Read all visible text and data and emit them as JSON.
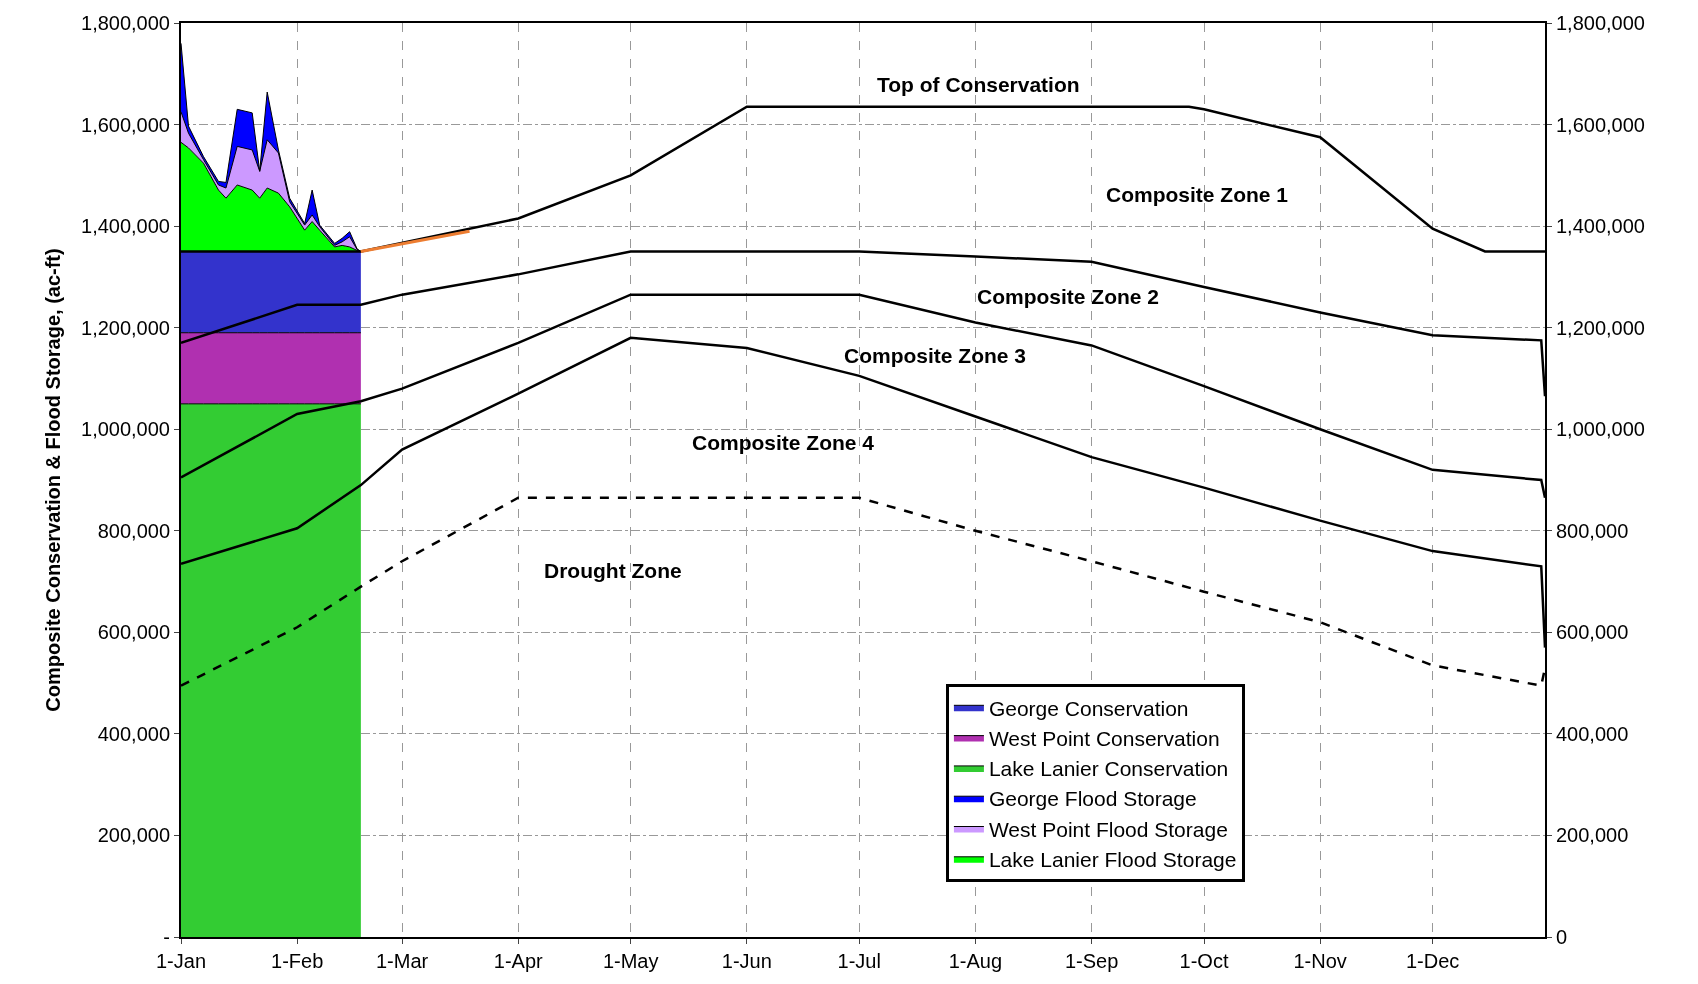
{
  "chart_data": {
    "type": "area",
    "stacked": true,
    "ylabel": "Composite Conservation & Flood Storage, (ac-ft)",
    "xlim": [
      "--01-01",
      "--12-31"
    ],
    "xticks": [
      {
        "value": "--01-01",
        "label": "1-Jan"
      },
      {
        "value": "--02-01",
        "label": "1-Feb"
      },
      {
        "value": "--03-01",
        "label": "1-Mar"
      },
      {
        "value": "--04-01",
        "label": "1-Apr"
      },
      {
        "value": "--05-01",
        "label": "1-May"
      },
      {
        "value": "--06-01",
        "label": "1-Jun"
      },
      {
        "value": "--07-01",
        "label": "1-Jul"
      },
      {
        "value": "--08-01",
        "label": "1-Aug"
      },
      {
        "value": "--09-01",
        "label": "1-Sep"
      },
      {
        "value": "--10-01",
        "label": "1-Oct"
      },
      {
        "value": "--11-01",
        "label": "1-Nov"
      },
      {
        "value": "--12-01",
        "label": "1-Dec"
      }
    ],
    "ylim": [
      0,
      1800000
    ],
    "yticks": [
      {
        "value": 0,
        "label": "-"
      },
      {
        "value": 200000,
        "label": "200,000"
      },
      {
        "value": 400000,
        "label": "400,000"
      },
      {
        "value": 600000,
        "label": "600,000"
      },
      {
        "value": 800000,
        "label": "800,000"
      },
      {
        "value": 1000000,
        "label": "1,000,000"
      },
      {
        "value": 1200000,
        "label": "1,200,000"
      },
      {
        "value": 1400000,
        "label": "1,400,000"
      },
      {
        "value": 1600000,
        "label": "1,600,000"
      },
      {
        "value": 1800000,
        "label": "1,800,000"
      }
    ],
    "y2lim": [
      0,
      1800000
    ],
    "y2ticks": [
      0,
      {
        "value": 200000,
        "label": "200,000"
      },
      {
        "value": 400000,
        "label": "400,000"
      },
      {
        "value": 600000,
        "label": "600,000"
      },
      {
        "value": 800000,
        "label": "800,000"
      },
      {
        "value": 1000000,
        "label": "1,000,000"
      },
      {
        "value": 1200000,
        "label": "1,200,000"
      },
      {
        "value": 1400000,
        "label": "1,400,000"
      },
      {
        "value": 1600000,
        "label": "1,600,000"
      },
      {
        "value": 1800000,
        "label": "1,800,000"
      }
    ],
    "grid": true,
    "legend": "bottom right",
    "x": [
      "--01-01",
      "--01-03",
      "--01-07",
      "--01-11",
      "--01-13",
      "--01-16",
      "--01-20",
      "--01-22",
      "--01-24",
      "--01-27",
      "--01-30",
      "--02-03",
      "--02-05",
      "--02-07",
      "--02-11",
      "--02-13",
      "--02-15",
      "--02-17",
      "--02-18"
    ],
    "series": [
      {
        "name": "Lake Lanier Conservation",
        "color": "#33cc33",
        "values": [
          1050000,
          1050000,
          1050000,
          1050000,
          1050000,
          1050000,
          1050000,
          1050000,
          1050000,
          1050000,
          1050000,
          1050000,
          1050000,
          1050000,
          1050000,
          1050000,
          1050000,
          1050000,
          1050000
        ]
      },
      {
        "name": "West Point Conservation",
        "color": "#b030b0",
        "values": [
          140000,
          140000,
          140000,
          140000,
          140000,
          140000,
          140000,
          140000,
          140000,
          140000,
          140000,
          140000,
          140000,
          140000,
          140000,
          140000,
          140000,
          140000,
          140000
        ]
      },
      {
        "name": "George Conservation",
        "color": "#3333cc",
        "values": [
          160000,
          160000,
          160000,
          160000,
          160000,
          160000,
          160000,
          160000,
          160000,
          160000,
          160000,
          160000,
          160000,
          160000,
          160000,
          160000,
          160000,
          160000,
          160000
        ]
      },
      {
        "name": "Lake Lanier Flood Storage",
        "color": "#00ff00",
        "values": [
          215000,
          204000,
          174000,
          121000,
          105000,
          131000,
          121000,
          105000,
          125000,
          115000,
          88000,
          42000,
          59000,
          42000,
          9000,
          12000,
          9000,
          2000,
          0
        ]
      },
      {
        "name": "West Point Flood Storage",
        "color": "#cc99ff",
        "values": [
          60000,
          29000,
          7000,
          10000,
          20000,
          76000,
          79000,
          53000,
          95000,
          79000,
          10000,
          10000,
          13000,
          7000,
          3000,
          7000,
          20000,
          2000,
          0
        ]
      },
      {
        "name": "George Flood Storage",
        "color": "#0000ff",
        "values": [
          135000,
          14000,
          6000,
          7000,
          11000,
          73000,
          73000,
          0,
          94000,
          6000,
          7000,
          3000,
          49000,
          3000,
          4000,
          7000,
          10000,
          1000,
          0
        ]
      },
      {
        "type": "line",
        "color": "#000000",
        "x": [
          "--01-01",
          "--02-18",
          "--04-01",
          "--05-01",
          "--06-01",
          "--07-01",
          "--09-01",
          "--09-27",
          "--10-01",
          "--11-01",
          "--12-01",
          "--12-15",
          "--12-31"
        ],
        "values": [
          1350000,
          1350000,
          1415000,
          1500000,
          1635000,
          1635000,
          1635000,
          1635000,
          1630000,
          1575000,
          1395000,
          1350000,
          1350000
        ]
      },
      {
        "type": "line",
        "color": "#000000",
        "x": [
          "--01-01",
          "--02-01",
          "--02-18",
          "--03-01",
          "--04-01",
          "--05-01",
          "--07-01",
          "--08-01",
          "--09-01",
          "--10-01",
          "--11-01",
          "--12-01",
          "--12-30",
          "--12-31"
        ],
        "values": [
          1170000,
          1245000,
          1245000,
          1265000,
          1305000,
          1350000,
          1350000,
          1340000,
          1330000,
          1280000,
          1230000,
          1185000,
          1175000,
          1065000
        ]
      },
      {
        "type": "line",
        "color": "#000000",
        "x": [
          "--01-01",
          "--02-01",
          "--02-18",
          "--03-01",
          "--04-01",
          "--05-01",
          "--07-01",
          "--08-01",
          "--09-01",
          "--10-01",
          "--11-01",
          "--12-01",
          "--12-30",
          "--12-31"
        ],
        "values": [
          905000,
          1030000,
          1055000,
          1080000,
          1170000,
          1265000,
          1265000,
          1210000,
          1165000,
          1085000,
          1000000,
          920000,
          900000,
          865000
        ]
      },
      {
        "type": "line",
        "color": "#000000",
        "x": [
          "--01-01",
          "--02-01",
          "--02-18",
          "--03-01",
          "--04-01",
          "--05-01",
          "--06-01",
          "--07-01",
          "--08-01",
          "--09-01",
          "--10-01",
          "--11-01",
          "--12-01",
          "--12-30",
          "--12-31"
        ],
        "values": [
          735000,
          805000,
          890000,
          960000,
          1070000,
          1180000,
          1160000,
          1105000,
          1025000,
          945000,
          885000,
          820000,
          760000,
          730000,
          570000
        ]
      },
      {
        "type": "line",
        "line_style": "dashed",
        "color": "#000000",
        "x": [
          "--01-01",
          "--02-01",
          "--02-18",
          "--03-01",
          "--04-01",
          "--07-01",
          "--08-01",
          "--09-01",
          "--10-01",
          "--11-01",
          "--12-01",
          "--12-30",
          "--12-31"
        ],
        "values": [
          495000,
          610000,
          690000,
          740000,
          865000,
          865000,
          800000,
          740000,
          680000,
          620000,
          535000,
          495000,
          530000
        ]
      },
      {
        "type": "line",
        "color": "#ed7d31",
        "x": [
          "--02-18",
          "--03-19"
        ],
        "values": [
          1350000,
          1390000
        ]
      }
    ],
    "annotations": [
      "Top of Conservation",
      "Composite Zone 1",
      "Composite Zone 2",
      "Composite Zone 3",
      "Composite Zone 4",
      "Drought Zone"
    ]
  }
}
